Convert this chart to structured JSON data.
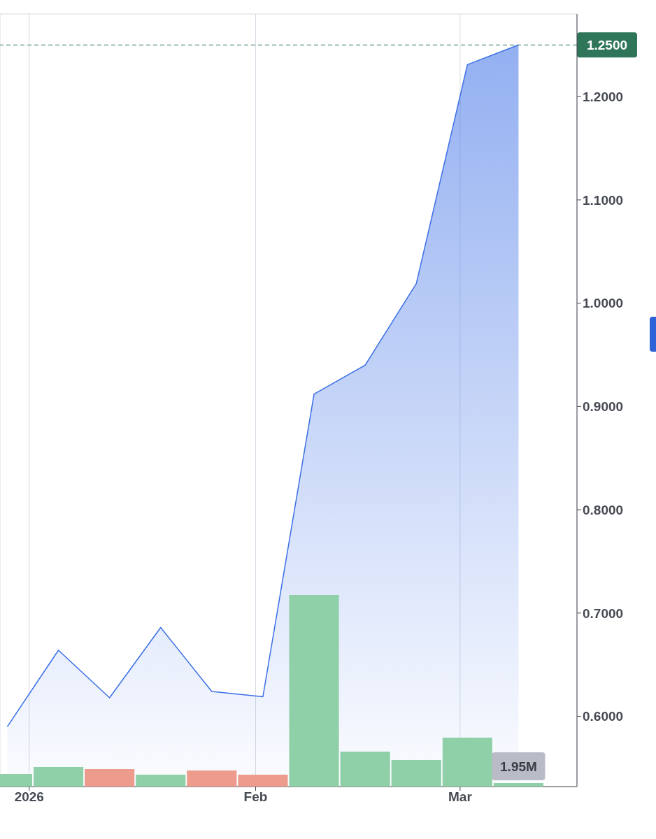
{
  "chart_data": [
    {
      "type": "area",
      "x": [
        "2025-12-29",
        "2026-01-05",
        "2026-01-12",
        "2026-01-19",
        "2026-01-26",
        "2026-02-02",
        "2026-02-09",
        "2026-02-16",
        "2026-02-23",
        "2026-03-02",
        "2026-03-09"
      ],
      "series": [
        {
          "color": "#3b6fe6",
          "values": [
            0.59,
            0.664,
            0.618,
            0.686,
            0.624,
            0.619,
            0.912,
            0.94,
            1.019,
            1.231,
            1.25
          ]
        }
      ],
      "xlim": [
        "2025-12-28",
        "2026-03-17"
      ],
      "xticks": [
        {
          "value": "2026-01-01",
          "label": "2026"
        },
        {
          "value": "2026-02-01",
          "label": "Feb"
        },
        {
          "value": "2026-03-01",
          "label": "Mar"
        }
      ],
      "ylim": [
        0.532,
        1.28
      ],
      "yticks": [
        {
          "value": 0.6,
          "label": "0.6000"
        },
        {
          "value": 0.7,
          "label": "0.7000"
        },
        {
          "value": 0.8,
          "label": "0.8000"
        },
        {
          "value": 0.9,
          "label": "0.9000"
        },
        {
          "value": 1.0,
          "label": "1.0000"
        },
        {
          "value": 1.1,
          "label": "1.1000"
        },
        {
          "value": 1.2,
          "label": "1.2000"
        }
      ],
      "ref_lines": [
        {
          "axis": "y",
          "value": 1.25,
          "label": "1.2500",
          "color": "#2e7559",
          "line_style": "dashed"
        }
      ],
      "grid": true
    },
    {
      "type": "bar",
      "x": [
        "2025-12-29",
        "2026-01-05",
        "2026-01-12",
        "2026-01-19",
        "2026-01-26",
        "2026-02-02",
        "2026-02-09",
        "2026-02-16",
        "2026-02-23",
        "2026-03-02",
        "2026-03-09"
      ],
      "xlim": [
        "2025-12-28",
        "2026-03-17"
      ],
      "colors": [
        "#8fd0a8",
        "#8fd0a8",
        "#ec9b8c",
        "#8fd0a8",
        "#ec9b8c",
        "#ec9b8c",
        "#8fd0a8",
        "#8fd0a8",
        "#8fd0a8",
        "#8fd0a8",
        "#8fd0a8"
      ],
      "values": [
        7.0,
        10.9,
        9.8,
        6.6,
        9.0,
        6.6,
        107,
        19.5,
        14.8,
        27.3,
        1.95
      ],
      "value_labels": [
        null,
        null,
        null,
        null,
        null,
        null,
        null,
        null,
        null,
        null,
        "1.95M"
      ]
    }
  ]
}
